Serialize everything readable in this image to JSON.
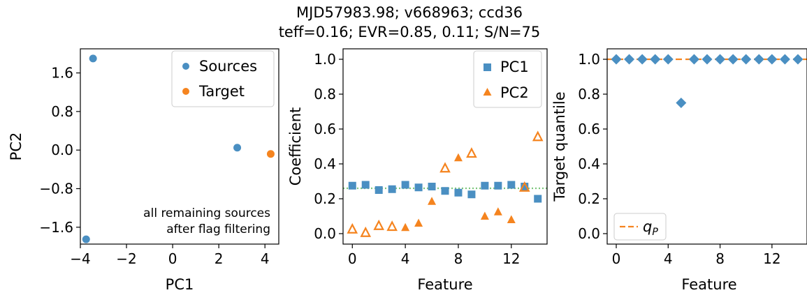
{
  "title": {
    "line1": "MJD57983.98; v668963; ccd36",
    "line2": "teff=0.16; EVR=0.85, 0.11; S/N=75"
  },
  "colors": {
    "blue": "#4a8fc2",
    "orange": "#f5841f",
    "green_dotted": "#7bc67b",
    "orange_dashed": "#f5841f"
  },
  "chart_data": [
    {
      "type": "scatter",
      "panel": "pca",
      "xlabel": "PC1",
      "ylabel": "PC2",
      "xlim": [
        -4.0,
        4.6
      ],
      "ylim": [
        -1.95,
        2.1
      ],
      "xticks": [
        -4,
        -2,
        0,
        2,
        4
      ],
      "xticklabels": [
        "−4",
        "−2",
        "0",
        "2",
        "4"
      ],
      "yticks": [
        -1.6,
        -0.8,
        0.0,
        0.8,
        1.6
      ],
      "yticklabels": [
        "−1.6",
        "−0.8",
        "0.0",
        "0.8",
        "1.6"
      ],
      "series": [
        {
          "name": "Sources",
          "color": "#4a8fc2",
          "marker": "circle",
          "x": [
            -3.45,
            2.8,
            -3.75
          ],
          "y": [
            1.9,
            0.05,
            -1.85
          ]
        },
        {
          "name": "Target",
          "color": "#f5841f",
          "marker": "circle",
          "x": [
            4.25
          ],
          "y": [
            -0.08
          ]
        }
      ],
      "legend": "top-right",
      "annotation": [
        "all remaining sources",
        "after flag filtering"
      ]
    },
    {
      "type": "scatter",
      "panel": "coefficients",
      "xlabel": "Feature",
      "ylabel": "Coefficient",
      "xlim": [
        -0.7,
        14.7
      ],
      "ylim": [
        -0.06,
        1.06
      ],
      "xticks": [
        0,
        4,
        8,
        12
      ],
      "xticklabels": [
        "0",
        "4",
        "8",
        "12"
      ],
      "yticks": [
        0.0,
        0.2,
        0.4,
        0.6,
        0.8,
        1.0
      ],
      "yticklabels": [
        "0.0",
        "0.2",
        "0.4",
        "0.6",
        "0.8",
        "1.0"
      ],
      "reference_line": {
        "y": 0.26,
        "style": "dotted",
        "color": "#7bc67b"
      },
      "series": [
        {
          "name": "PC1",
          "color": "#4a8fc2",
          "marker": "square",
          "x": [
            0,
            1,
            2,
            3,
            4,
            5,
            6,
            7,
            8,
            9,
            10,
            11,
            12,
            13,
            14
          ],
          "y": [
            0.275,
            0.28,
            0.25,
            0.255,
            0.28,
            0.265,
            0.27,
            0.245,
            0.235,
            0.225,
            0.275,
            0.275,
            0.28,
            0.27,
            0.2
          ]
        },
        {
          "name": "PC2",
          "color": "#f5841f",
          "marker": "triangle",
          "x": [
            0,
            1,
            2,
            3,
            4,
            5,
            6,
            7,
            8,
            9,
            10,
            11,
            12,
            13,
            14
          ],
          "y": [
            0.025,
            0.005,
            0.045,
            0.04,
            0.035,
            0.06,
            0.185,
            0.375,
            0.435,
            0.46,
            0.1,
            0.125,
            0.08,
            0.265,
            0.555
          ],
          "filled": [
            false,
            false,
            false,
            false,
            true,
            true,
            true,
            false,
            true,
            false,
            true,
            true,
            true,
            false,
            false
          ]
        }
      ],
      "legend": "top-right"
    },
    {
      "type": "scatter",
      "panel": "quantiles",
      "xlabel": "Feature",
      "ylabel": "Target quantile",
      "xlim": [
        -0.7,
        14.7
      ],
      "ylim": [
        -0.06,
        1.06
      ],
      "xticks": [
        0,
        4,
        8,
        12
      ],
      "xticklabels": [
        "0",
        "4",
        "8",
        "12"
      ],
      "yticks": [
        0.0,
        0.2,
        0.4,
        0.6,
        0.8,
        1.0
      ],
      "yticklabels": [
        "0.0",
        "0.2",
        "0.4",
        "0.6",
        "0.8",
        "1.0"
      ],
      "reference_line": {
        "y": 1.0,
        "style": "dashed",
        "color": "#f5841f",
        "name": "q_P"
      },
      "series": [
        {
          "name": "Target quantile",
          "color": "#4a8fc2",
          "marker": "diamond",
          "x": [
            0,
            1,
            2,
            3,
            4,
            5,
            6,
            7,
            8,
            9,
            10,
            11,
            12,
            13,
            14
          ],
          "y": [
            1.0,
            1.0,
            1.0,
            1.0,
            1.0,
            0.75,
            1.0,
            1.0,
            1.0,
            1.0,
            1.0,
            1.0,
            1.0,
            1.0,
            1.0
          ]
        }
      ],
      "legend": "bottom-left",
      "legend_label": "q",
      "legend_label_sub": "P"
    }
  ]
}
